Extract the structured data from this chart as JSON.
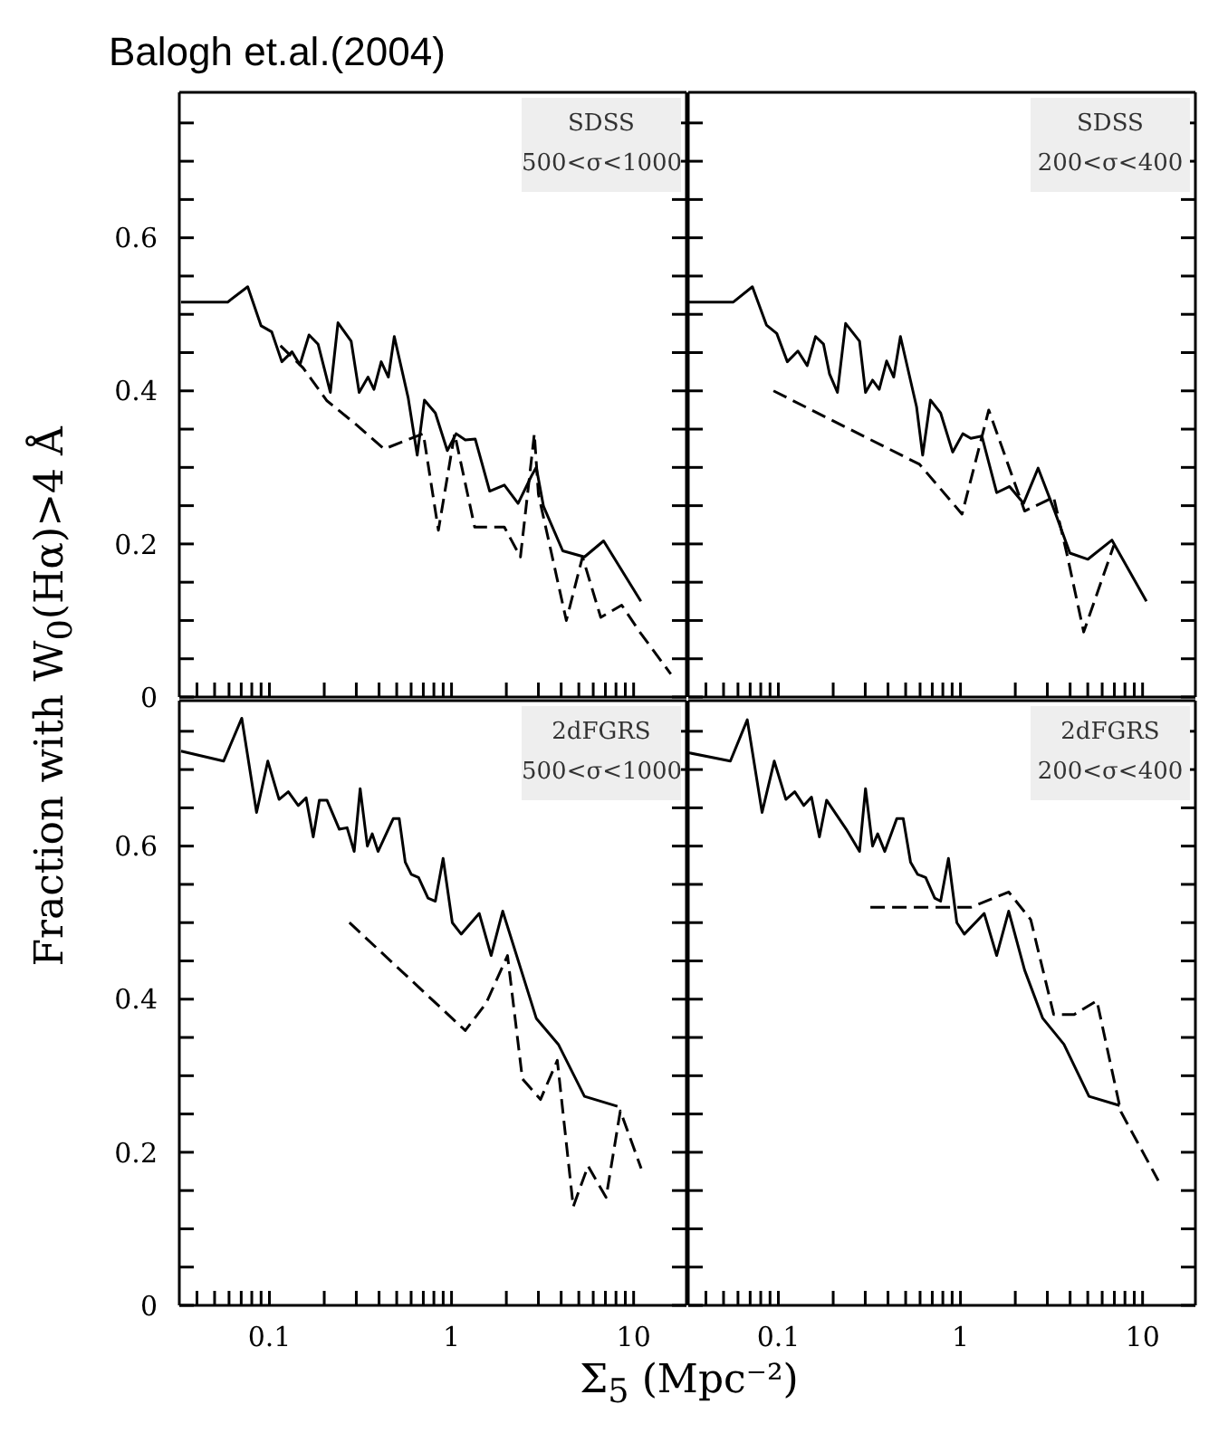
{
  "chart_data": [
    {
      "type": "line",
      "title": "SDSS",
      "subtitle": "500<σ<1000",
      "ylabel": "Fraction with W$_{0}$(Hα)>4 Å",
      "annotations": [
        "Balogh et.al.(2004)"
      ],
      "log": "x",
      "tick_labels": "y",
      "xlim": [
        0.032,
        19.5
      ],
      "ylim": [
        0,
        0.79
      ],
      "xticks": [
        {
          "value": 0.04,
          "label": null
        },
        {
          "value": 0.05,
          "label": null
        },
        {
          "value": 0.06,
          "label": null
        },
        {
          "value": 0.07,
          "label": null
        },
        {
          "value": 0.08,
          "label": null
        },
        {
          "value": 0.09,
          "label": null
        },
        0.1,
        {
          "value": 0.2,
          "label": null
        },
        {
          "value": 0.3,
          "label": null
        },
        {
          "value": 0.4,
          "label": null
        },
        {
          "value": 0.5,
          "label": null
        },
        {
          "value": 0.6,
          "label": null
        },
        {
          "value": 0.7,
          "label": null
        },
        {
          "value": 0.8,
          "label": null
        },
        {
          "value": 0.9,
          "label": null
        },
        1,
        {
          "value": 2,
          "label": null
        },
        {
          "value": 3,
          "label": null
        },
        {
          "value": 4,
          "label": null
        },
        {
          "value": 5,
          "label": null
        },
        {
          "value": 6,
          "label": null
        },
        {
          "value": 7,
          "label": null
        },
        {
          "value": 8,
          "label": null
        },
        {
          "value": 9,
          "label": null
        },
        10
      ],
      "yticks": [
        0,
        {
          "value": 0.05,
          "label": null
        },
        {
          "value": 0.1,
          "label": null
        },
        {
          "value": 0.15,
          "label": null
        },
        0.2,
        {
          "value": 0.25,
          "label": null
        },
        {
          "value": 0.3,
          "label": null
        },
        {
          "value": 0.35,
          "label": null
        },
        0.4,
        {
          "value": 0.45,
          "label": null
        },
        {
          "value": 0.5,
          "label": null
        },
        {
          "value": 0.55,
          "label": null
        },
        0.6,
        {
          "value": 0.65,
          "label": null
        },
        {
          "value": 0.7,
          "label": null
        },
        {
          "value": 0.75,
          "label": null
        }
      ],
      "series": [
        {
          "color": "#000000",
          "line_style": "solid",
          "x": [
            0.0327,
            0.059,
            0.076,
            0.09,
            0.103,
            0.117,
            0.133,
            0.147,
            0.165,
            0.185,
            0.216,
            0.238,
            0.281,
            0.311,
            0.348,
            0.375,
            0.411,
            0.45,
            0.485,
            0.578,
            0.648,
            0.71,
            0.815,
            0.948,
            1.06,
            1.19,
            1.35,
            1.62,
            1.95,
            2.32,
            2.75,
            2.92,
            3.2,
            4.08,
            5.37,
            6.84,
            10.96
          ],
          "values": [
            0.516,
            0.516,
            0.536,
            0.485,
            0.477,
            0.438,
            0.451,
            0.434,
            0.473,
            0.461,
            0.398,
            0.489,
            0.465,
            0.398,
            0.418,
            0.402,
            0.438,
            0.418,
            0.471,
            0.391,
            0.316,
            0.388,
            0.371,
            0.322,
            0.344,
            0.336,
            0.337,
            0.269,
            0.277,
            0.253,
            0.289,
            0.3,
            0.249,
            0.191,
            0.183,
            0.204,
            0.125
          ]
        },
        {
          "color": "#000000",
          "line_style": "dashed",
          "x": [
            0.115,
            0.153,
            0.207,
            0.303,
            0.427,
            0.517,
            0.7,
            0.847,
            1.04,
            1.34,
            1.95,
            2.39,
            2.85,
            3.0,
            4.27,
            5.24,
            6.6,
            8.6,
            10.8,
            16
          ],
          "values": [
            0.459,
            0.43,
            0.387,
            0.355,
            0.324,
            0.332,
            0.344,
            0.218,
            0.344,
            0.222,
            0.222,
            0.183,
            0.344,
            0.265,
            0.1,
            0.183,
            0.104,
            0.12,
            0.085,
            0.03
          ]
        }
      ]
    },
    {
      "type": "line",
      "title": "SDSS",
      "subtitle": "200<σ<400",
      "log": "x",
      "tick_labels": false,
      "xlim": [
        0.032,
        19.5
      ],
      "ylim": [
        0,
        0.79
      ],
      "xticks": [
        {
          "value": 0.04,
          "label": null
        },
        {
          "value": 0.05,
          "label": null
        },
        {
          "value": 0.06,
          "label": null
        },
        {
          "value": 0.07,
          "label": null
        },
        {
          "value": 0.08,
          "label": null
        },
        {
          "value": 0.09,
          "label": null
        },
        0.1,
        {
          "value": 0.2,
          "label": null
        },
        {
          "value": 0.3,
          "label": null
        },
        {
          "value": 0.4,
          "label": null
        },
        {
          "value": 0.5,
          "label": null
        },
        {
          "value": 0.6,
          "label": null
        },
        {
          "value": 0.7,
          "label": null
        },
        {
          "value": 0.8,
          "label": null
        },
        {
          "value": 0.9,
          "label": null
        },
        1,
        {
          "value": 2,
          "label": null
        },
        {
          "value": 3,
          "label": null
        },
        {
          "value": 4,
          "label": null
        },
        {
          "value": 5,
          "label": null
        },
        {
          "value": 6,
          "label": null
        },
        {
          "value": 7,
          "label": null
        },
        {
          "value": 8,
          "label": null
        },
        {
          "value": 9,
          "label": null
        },
        10
      ],
      "yticks": [
        0,
        {
          "value": 0.05,
          "label": null
        },
        {
          "value": 0.1,
          "label": null
        },
        {
          "value": 0.15,
          "label": null
        },
        0.2,
        {
          "value": 0.25,
          "label": null
        },
        {
          "value": 0.3,
          "label": null
        },
        {
          "value": 0.35,
          "label": null
        },
        0.4,
        {
          "value": 0.45,
          "label": null
        },
        {
          "value": 0.5,
          "label": null
        },
        {
          "value": 0.55,
          "label": null
        },
        0.6,
        {
          "value": 0.65,
          "label": null
        },
        {
          "value": 0.7,
          "label": null
        },
        {
          "value": 0.75,
          "label": null
        }
      ],
      "series": [
        {
          "color": "#000000",
          "line_style": "solid",
          "x": [
            0.032,
            0.0566,
            0.072,
            0.086,
            0.098,
            0.112,
            0.128,
            0.144,
            0.16,
            0.177,
            0.191,
            0.211,
            0.234,
            0.279,
            0.301,
            0.329,
            0.358,
            0.393,
            0.43,
            0.468,
            0.574,
            0.62,
            0.684,
            0.778,
            0.906,
            1.03,
            1.14,
            1.31,
            1.58,
            1.86,
            2.22,
            2.67,
            3.3,
            3.99,
            5.01,
            6.79,
            10.5
          ],
          "values": [
            0.516,
            0.516,
            0.536,
            0.486,
            0.475,
            0.438,
            0.452,
            0.433,
            0.471,
            0.461,
            0.422,
            0.398,
            0.488,
            0.465,
            0.398,
            0.414,
            0.402,
            0.439,
            0.418,
            0.471,
            0.379,
            0.316,
            0.388,
            0.371,
            0.32,
            0.344,
            0.338,
            0.341,
            0.267,
            0.275,
            0.253,
            0.299,
            0.242,
            0.188,
            0.18,
            0.205,
            0.125
          ]
        },
        {
          "color": "#000000",
          "line_style": "dashed",
          "x": [
            0.094,
            0.596,
            1.02,
            1.43,
            2.25,
            3.25,
            3.84,
            4.75,
            6.95
          ],
          "values": [
            0.4,
            0.304,
            0.239,
            0.375,
            0.243,
            0.261,
            0.187,
            0.085,
            0.198
          ]
        }
      ]
    },
    {
      "type": "line",
      "title": "2dFGRS",
      "subtitle": "500<σ<1000",
      "xlabel": "Σ$_{5}$ (Mpc⁻²)",
      "log": "x",
      "xlim": [
        0.032,
        19.5
      ],
      "ylim": [
        0,
        0.79
      ],
      "xticks": [
        {
          "value": 0.04,
          "label": null
        },
        {
          "value": 0.05,
          "label": null
        },
        {
          "value": 0.06,
          "label": null
        },
        {
          "value": 0.07,
          "label": null
        },
        {
          "value": 0.08,
          "label": null
        },
        {
          "value": 0.09,
          "label": null
        },
        0.1,
        {
          "value": 0.2,
          "label": null
        },
        {
          "value": 0.3,
          "label": null
        },
        {
          "value": 0.4,
          "label": null
        },
        {
          "value": 0.5,
          "label": null
        },
        {
          "value": 0.6,
          "label": null
        },
        {
          "value": 0.7,
          "label": null
        },
        {
          "value": 0.8,
          "label": null
        },
        {
          "value": 0.9,
          "label": null
        },
        1,
        {
          "value": 2,
          "label": null
        },
        {
          "value": 3,
          "label": null
        },
        {
          "value": 4,
          "label": null
        },
        {
          "value": 5,
          "label": null
        },
        {
          "value": 6,
          "label": null
        },
        {
          "value": 7,
          "label": null
        },
        {
          "value": 8,
          "label": null
        },
        {
          "value": 9,
          "label": null
        },
        10
      ],
      "yticks": [
        0,
        {
          "value": 0.05,
          "label": null
        },
        {
          "value": 0.1,
          "label": null
        },
        {
          "value": 0.15,
          "label": null
        },
        0.2,
        {
          "value": 0.25,
          "label": null
        },
        {
          "value": 0.3,
          "label": null
        },
        {
          "value": 0.35,
          "label": null
        },
        0.4,
        {
          "value": 0.45,
          "label": null
        },
        {
          "value": 0.5,
          "label": null
        },
        {
          "value": 0.55,
          "label": null
        },
        0.6,
        {
          "value": 0.65,
          "label": null
        },
        {
          "value": 0.7,
          "label": null
        },
        {
          "value": 0.75,
          "label": null
        }
      ],
      "series": [
        {
          "color": "#000000",
          "line_style": "solid",
          "x": [
            0.0327,
            0.056,
            0.0705,
            0.085,
            0.098,
            0.113,
            0.127,
            0.144,
            0.159,
            0.174,
            0.188,
            0.207,
            0.242,
            0.267,
            0.292,
            0.315,
            0.345,
            0.367,
            0.395,
            0.479,
            0.516,
            0.557,
            0.601,
            0.659,
            0.743,
            0.815,
            0.899,
            1.01,
            1.13,
            1.42,
            1.65,
            1.91,
            2.92,
            3.86,
            5.37,
            8.15
          ],
          "values": [
            0.724,
            0.711,
            0.767,
            0.644,
            0.711,
            0.661,
            0.671,
            0.653,
            0.663,
            0.612,
            0.66,
            0.66,
            0.622,
            0.624,
            0.593,
            0.675,
            0.6,
            0.616,
            0.593,
            0.636,
            0.636,
            0.579,
            0.563,
            0.559,
            0.532,
            0.528,
            0.584,
            0.5,
            0.485,
            0.512,
            0.457,
            0.515,
            0.375,
            0.341,
            0.273,
            0.26
          ]
        },
        {
          "color": "#000000",
          "line_style": "dashed",
          "x": [
            0.275,
            1.19,
            1.55,
            2.03,
            2.45,
            3.08,
            3.81,
            4.66,
            5.62,
            7.06,
            8.45,
            11.0
          ],
          "values": [
            0.5,
            0.359,
            0.395,
            0.457,
            0.296,
            0.269,
            0.32,
            0.129,
            0.182,
            0.141,
            0.254,
            0.179
          ]
        }
      ]
    },
    {
      "type": "line",
      "title": "2dFGRS",
      "subtitle": "200<σ<400",
      "log": "x",
      "tick_labels": "x",
      "xlim": [
        0.032,
        19.5
      ],
      "ylim": [
        0,
        0.79
      ],
      "xticks": [
        {
          "value": 0.04,
          "label": null
        },
        {
          "value": 0.05,
          "label": null
        },
        {
          "value": 0.06,
          "label": null
        },
        {
          "value": 0.07,
          "label": null
        },
        {
          "value": 0.08,
          "label": null
        },
        {
          "value": 0.09,
          "label": null
        },
        0.1,
        {
          "value": 0.2,
          "label": null
        },
        {
          "value": 0.3,
          "label": null
        },
        {
          "value": 0.4,
          "label": null
        },
        {
          "value": 0.5,
          "label": null
        },
        {
          "value": 0.6,
          "label": null
        },
        {
          "value": 0.7,
          "label": null
        },
        {
          "value": 0.8,
          "label": null
        },
        {
          "value": 0.9,
          "label": null
        },
        1,
        {
          "value": 2,
          "label": null
        },
        {
          "value": 3,
          "label": null
        },
        {
          "value": 4,
          "label": null
        },
        {
          "value": 5,
          "label": null
        },
        {
          "value": 6,
          "label": null
        },
        {
          "value": 7,
          "label": null
        },
        {
          "value": 8,
          "label": null
        },
        {
          "value": 9,
          "label": null
        },
        10
      ],
      "yticks": [
        0,
        {
          "value": 0.05,
          "label": null
        },
        {
          "value": 0.1,
          "label": null
        },
        {
          "value": 0.15,
          "label": null
        },
        0.2,
        {
          "value": 0.25,
          "label": null
        },
        {
          "value": 0.3,
          "label": null
        },
        {
          "value": 0.35,
          "label": null
        },
        0.4,
        {
          "value": 0.45,
          "label": null
        },
        {
          "value": 0.5,
          "label": null
        },
        {
          "value": 0.55,
          "label": null
        },
        0.6,
        {
          "value": 0.65,
          "label": null
        },
        {
          "value": 0.7,
          "label": null
        },
        {
          "value": 0.75,
          "label": null
        }
      ],
      "series": [
        {
          "color": "#000000",
          "line_style": "solid",
          "x": [
            0.032,
            0.0545,
            0.0675,
            0.0814,
            0.0949,
            0.11,
            0.123,
            0.138,
            0.152,
            0.168,
            0.184,
            0.236,
            0.279,
            0.301,
            0.329,
            0.351,
            0.384,
            0.447,
            0.485,
            0.532,
            0.582,
            0.644,
            0.722,
            0.778,
            0.859,
            0.955,
            1.05,
            1.35,
            1.58,
            1.84,
            2.25,
            2.83,
            3.7,
            5.08,
            7.48
          ],
          "values": [
            0.722,
            0.711,
            0.765,
            0.644,
            0.711,
            0.661,
            0.671,
            0.653,
            0.664,
            0.612,
            0.66,
            0.622,
            0.593,
            0.675,
            0.6,
            0.616,
            0.593,
            0.636,
            0.636,
            0.579,
            0.563,
            0.559,
            0.532,
            0.528,
            0.584,
            0.5,
            0.485,
            0.512,
            0.457,
            0.515,
            0.438,
            0.375,
            0.341,
            0.273,
            0.261
          ]
        },
        {
          "color": "#000000",
          "line_style": "dashed",
          "x": [
            0.32,
            1.14,
            1.84,
            2.43,
            3.25,
            4.21,
            5.61,
            7.6,
            12.2
          ],
          "values": [
            0.52,
            0.52,
            0.54,
            0.504,
            0.38,
            0.38,
            0.398,
            0.253,
            0.163
          ]
        }
      ]
    }
  ]
}
